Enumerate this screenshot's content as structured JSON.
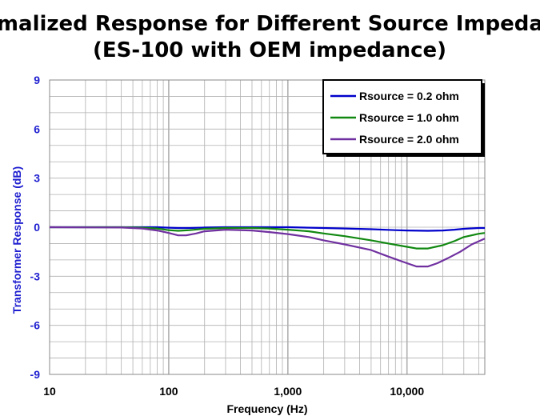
{
  "chart_data": {
    "type": "line",
    "title": [
      "Normalized Response for Different Source Impedance",
      "(ES-100 with OEM impedance)"
    ],
    "xlabel": "Frequency (Hz)",
    "ylabel": "Transformer  Response (dB)",
    "xscale": "log",
    "xlim": [
      10,
      45000
    ],
    "ylim": [
      -9,
      9
    ],
    "grid": true,
    "legend_position": "top-right",
    "x_ticks": [
      {
        "value": 10,
        "label": "10"
      },
      {
        "value": 100,
        "label": "100"
      },
      {
        "value": 1000,
        "label": "1,000"
      },
      {
        "value": 10000,
        "label": "10,000"
      }
    ],
    "y_ticks": [
      {
        "value": 9,
        "label": "9"
      },
      {
        "value": 6,
        "label": "6"
      },
      {
        "value": 3,
        "label": "3"
      },
      {
        "value": 0,
        "label": "0"
      },
      {
        "value": -3,
        "label": "-3"
      },
      {
        "value": -6,
        "label": "-6"
      },
      {
        "value": -9,
        "label": "-9"
      }
    ],
    "colors": {
      "plot_border": "#888888",
      "grid": "#b0b0b0",
      "x_tick_text": "#000000",
      "y_tick_text": "#1f1fd0",
      "ylabel_text": "#1f1fd0"
    },
    "series": [
      {
        "name": "Rsource = 0.2 ohm",
        "color": "#0000cc",
        "points": [
          [
            10,
            0
          ],
          [
            40,
            0
          ],
          [
            60,
            0
          ],
          [
            80,
            0
          ],
          [
            100,
            -0.03
          ],
          [
            120,
            -0.05
          ],
          [
            150,
            -0.05
          ],
          [
            200,
            -0.02
          ],
          [
            300,
            0
          ],
          [
            500,
            0
          ],
          [
            1000,
            0
          ],
          [
            2000,
            -0.05
          ],
          [
            3000,
            -0.08
          ],
          [
            5000,
            -0.12
          ],
          [
            8000,
            -0.18
          ],
          [
            10000,
            -0.2
          ],
          [
            15000,
            -0.22
          ],
          [
            20000,
            -0.2
          ],
          [
            25000,
            -0.15
          ],
          [
            30000,
            -0.1
          ],
          [
            40000,
            -0.05
          ],
          [
            45000,
            -0.05
          ]
        ]
      },
      {
        "name": "Rsource = 1.0 ohm",
        "color": "#118811",
        "points": [
          [
            10,
            0
          ],
          [
            40,
            0
          ],
          [
            60,
            -0.03
          ],
          [
            80,
            -0.08
          ],
          [
            100,
            -0.18
          ],
          [
            120,
            -0.22
          ],
          [
            150,
            -0.18
          ],
          [
            200,
            -0.1
          ],
          [
            300,
            -0.05
          ],
          [
            500,
            -0.05
          ],
          [
            700,
            -0.08
          ],
          [
            1000,
            -0.15
          ],
          [
            1500,
            -0.25
          ],
          [
            2000,
            -0.38
          ],
          [
            3000,
            -0.55
          ],
          [
            5000,
            -0.8
          ],
          [
            7000,
            -1.0
          ],
          [
            10000,
            -1.2
          ],
          [
            12000,
            -1.3
          ],
          [
            15000,
            -1.3
          ],
          [
            20000,
            -1.1
          ],
          [
            25000,
            -0.85
          ],
          [
            30000,
            -0.6
          ],
          [
            40000,
            -0.4
          ],
          [
            45000,
            -0.35
          ]
        ]
      },
      {
        "name": "Rsource = 2.0 ohm",
        "color": "#7030a0",
        "points": [
          [
            10,
            0
          ],
          [
            40,
            -0.02
          ],
          [
            60,
            -0.08
          ],
          [
            80,
            -0.2
          ],
          [
            100,
            -0.35
          ],
          [
            120,
            -0.5
          ],
          [
            140,
            -0.5
          ],
          [
            170,
            -0.38
          ],
          [
            200,
            -0.25
          ],
          [
            300,
            -0.15
          ],
          [
            500,
            -0.2
          ],
          [
            700,
            -0.3
          ],
          [
            1000,
            -0.42
          ],
          [
            1500,
            -0.6
          ],
          [
            2000,
            -0.8
          ],
          [
            3000,
            -1.05
          ],
          [
            5000,
            -1.4
          ],
          [
            7000,
            -1.8
          ],
          [
            10000,
            -2.2
          ],
          [
            12000,
            -2.4
          ],
          [
            15000,
            -2.4
          ],
          [
            18000,
            -2.2
          ],
          [
            22000,
            -1.9
          ],
          [
            28000,
            -1.5
          ],
          [
            35000,
            -1.05
          ],
          [
            45000,
            -0.7
          ]
        ]
      }
    ]
  }
}
